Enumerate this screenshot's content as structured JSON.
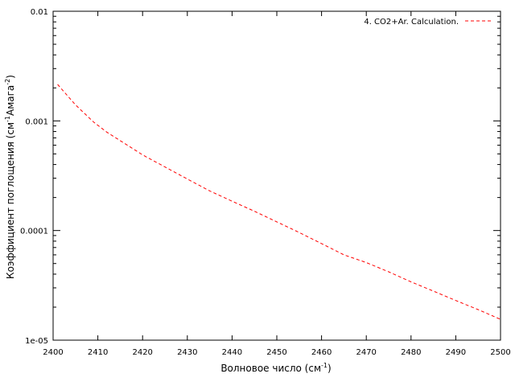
{
  "chart_data": {
    "type": "line",
    "xlabel": "Волновое число (см",
    "xlabel_sup": "-1",
    "xlabel_tail": ")",
    "ylabel": "Коэффициент поглощения (см",
    "ylabel_sup1": "-1",
    "ylabel_mid": "Амага",
    "ylabel_sup2": "-2",
    "ylabel_tail": ")",
    "xlim": [
      2400,
      2500
    ],
    "ylim": [
      1e-05,
      0.01
    ],
    "yscale": "log",
    "grid": false,
    "legend_position": "top-right",
    "x_ticks": [
      2400,
      2410,
      2420,
      2430,
      2440,
      2450,
      2460,
      2470,
      2480,
      2490,
      2500
    ],
    "x_tick_labels": [
      "2400",
      "2410",
      "2420",
      "2430",
      "2440",
      "2450",
      "2460",
      "2470",
      "2480",
      "2490",
      "2500"
    ],
    "y_ticks": [
      1e-05,
      0.0001,
      0.001,
      0.01
    ],
    "y_tick_labels": [
      "1e-05",
      "0.0001",
      "0.001",
      "0.01"
    ],
    "series": [
      {
        "name": "4. CO2+Ar. Calculation.",
        "color": "#ff0000",
        "dash": "dashed",
        "x": [
          2401,
          2405,
          2409,
          2412,
          2415,
          2420,
          2425,
          2430,
          2435,
          2440,
          2445,
          2450,
          2455,
          2460,
          2465,
          2470,
          2475,
          2480,
          2485,
          2490,
          2495,
          2500
        ],
        "y": [
          0.00215,
          0.0014,
          0.00098,
          0.00079,
          0.00066,
          0.00049,
          0.00038,
          0.000295,
          0.00023,
          0.000185,
          0.00015,
          0.00012,
          9.6e-05,
          7.6e-05,
          6e-05,
          5.1e-05,
          4.2e-05,
          3.4e-05,
          2.8e-05,
          2.3e-05,
          1.9e-05,
          1.55e-05
        ]
      }
    ]
  }
}
